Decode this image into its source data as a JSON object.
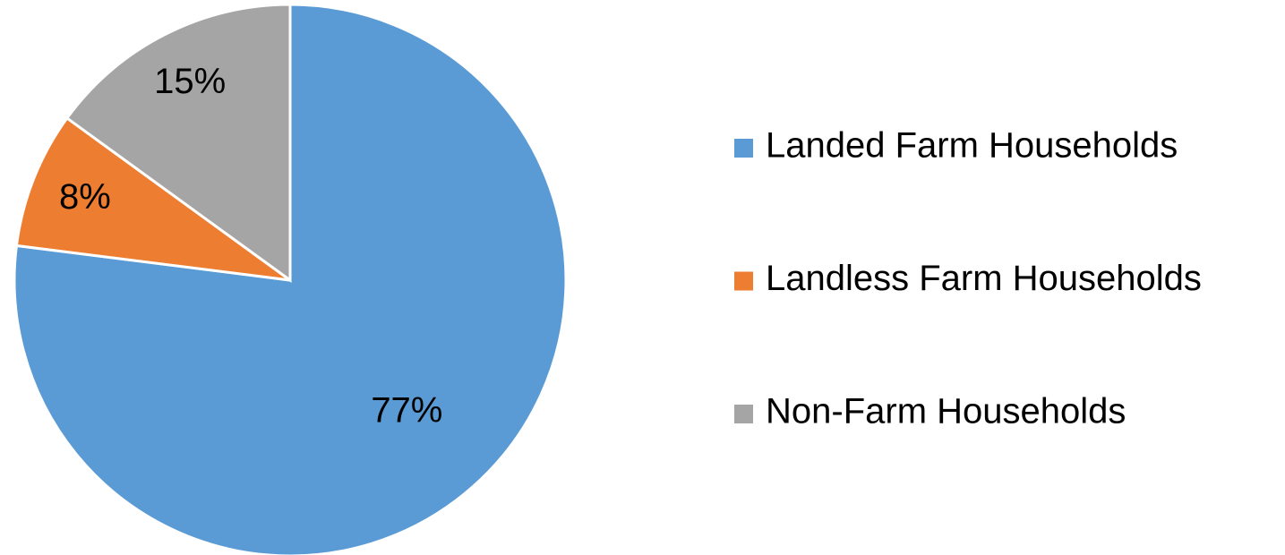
{
  "chart_data": {
    "type": "pie",
    "categories": [
      "Landed Farm Households",
      "Landless Farm Households",
      "Non-Farm Households"
    ],
    "values": [
      77,
      8,
      15
    ],
    "value_labels": [
      "77%",
      "8%",
      "15%"
    ],
    "colors": [
      "#5b9bd5",
      "#ed7d31",
      "#a5a5a5"
    ],
    "legend": "right"
  }
}
